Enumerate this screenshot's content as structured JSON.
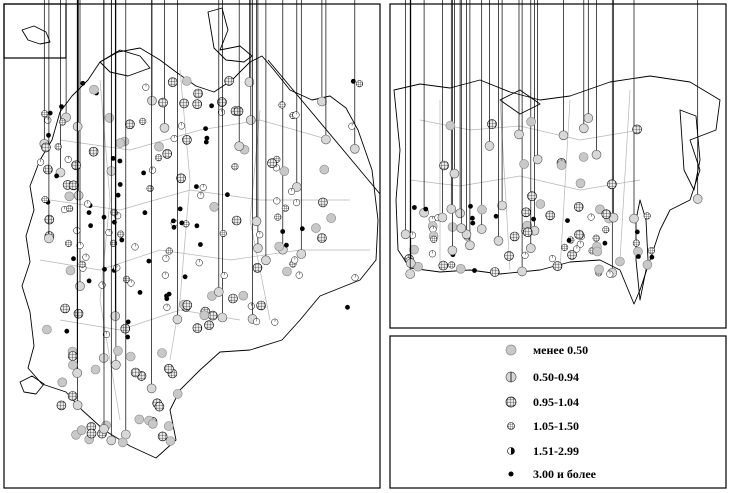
{
  "legend": {
    "items": [
      {
        "label": "менее 0.50",
        "symbol": "grey-circle"
      },
      {
        "label": "0.50-0.94",
        "symbol": "grey-circle-vertical-line"
      },
      {
        "label": "0.95-1.04",
        "symbol": "grid-circle"
      },
      {
        "label": "1.05-1.50",
        "symbol": "small-hatched-circle"
      },
      {
        "label": "1.51-2.99",
        "symbol": "half-black-circle"
      },
      {
        "label": "3.00 и более",
        "symbol": "black-dot"
      }
    ]
  },
  "colors": {
    "light_fill": "#c8c8c8",
    "dark_fill": "#000000",
    "boundary": "#b5b5b5"
  }
}
